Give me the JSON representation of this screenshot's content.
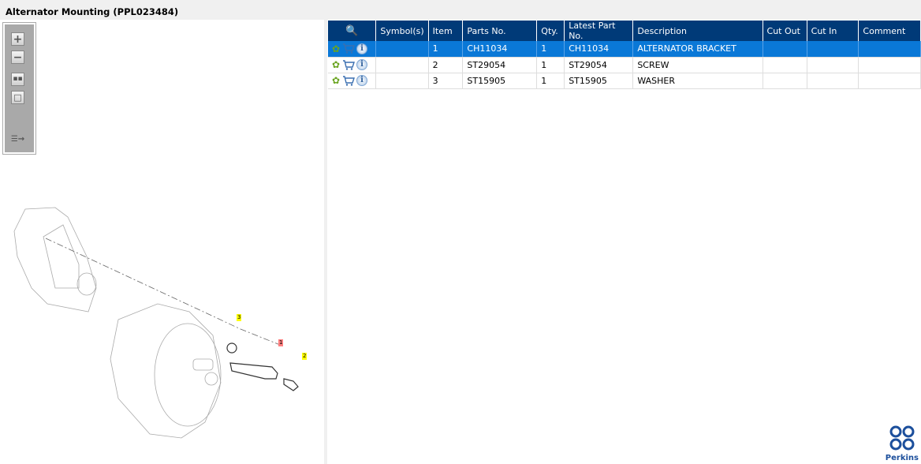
{
  "title": "Alternator Mounting (PPL023484)",
  "toolbar": {
    "icons": [
      "zoom-in-icon",
      "zoom-out-icon",
      "fit-all-icon",
      "actual-size-icon",
      "toggle-list-icon"
    ]
  },
  "diagram": {
    "callouts": [
      {
        "label": "3",
        "color": "#ffff00"
      },
      {
        "label": "1",
        "color": "#ff8080"
      },
      {
        "label": "2",
        "color": "#ffff00"
      }
    ]
  },
  "table": {
    "columns": [
      "",
      "Symbol(s)",
      "Item",
      "Parts No.",
      "Qty.",
      "Latest Part No.",
      "Description",
      "Cut Out",
      "Cut In",
      "Comment"
    ],
    "rows": [
      {
        "symbols": "",
        "item": "1",
        "part": "CH11034",
        "qty": "1",
        "latest": "CH11034",
        "desc": "ALTERNATOR BRACKET",
        "cut_out": "",
        "cut_in": "",
        "comment": ""
      },
      {
        "symbols": "",
        "item": "2",
        "part": "ST29054",
        "qty": "1",
        "latest": "ST29054",
        "desc": "SCREW",
        "cut_out": "",
        "cut_in": "",
        "comment": ""
      },
      {
        "symbols": "",
        "item": "3",
        "part": "ST15905",
        "qty": "1",
        "latest": "ST15905",
        "desc": "WASHER",
        "cut_out": "",
        "cut_in": "",
        "comment": ""
      }
    ]
  },
  "logo": {
    "text": "Perkins"
  },
  "colors": {
    "header": "#003a78",
    "selected": "#0a78d7",
    "accent": "#1c4f9c"
  }
}
